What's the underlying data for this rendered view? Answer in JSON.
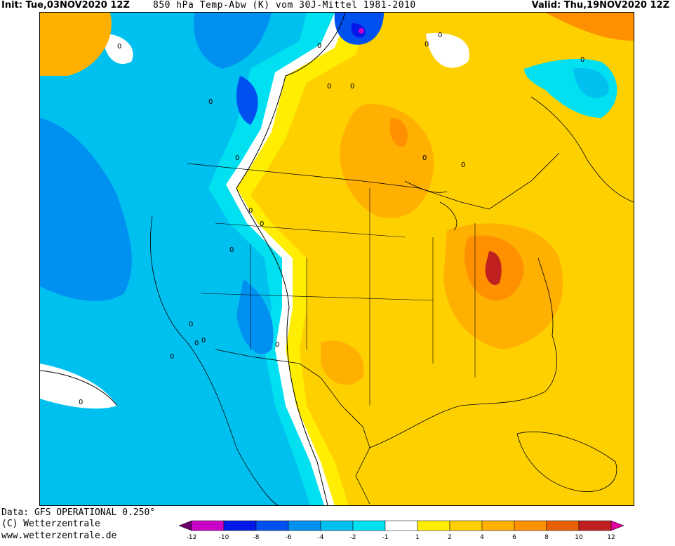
{
  "header": {
    "init": "Init: Tue,03NOV2020 12Z",
    "title": "850 hPa Temp-Abw (K) vom 30J-Mittel 1981-2010",
    "valid": "Valid: Thu,19NOV2020  12Z"
  },
  "footer": {
    "data": "Data: GFS OPERATIONAL 0.250°",
    "copyright": "(C) Wetterzentrale",
    "url": "www.wetterzentrale.de"
  },
  "legend": {
    "ticks": [
      "-12",
      "-10",
      "-8",
      "-6",
      "-4",
      "-2",
      "-1",
      "1",
      "2",
      "4",
      "6",
      "8",
      "10",
      "12"
    ],
    "colors": [
      "#6a006a",
      "#c800c8",
      "#0018e8",
      "#0050f0",
      "#0090f0",
      "#00c0f0",
      "#00e0f0",
      "#ffffff",
      "#ffee00",
      "#ffd000",
      "#ffb000",
      "#ff9000",
      "#e86000",
      "#c02020",
      "#e000a0"
    ]
  },
  "contour_labels": [
    "0",
    "0",
    "0",
    "0",
    "0",
    "0",
    "0",
    "0",
    "0",
    "0",
    "0",
    "0",
    "0",
    "0",
    "0",
    "0",
    "0",
    "0",
    "0",
    "0"
  ]
}
